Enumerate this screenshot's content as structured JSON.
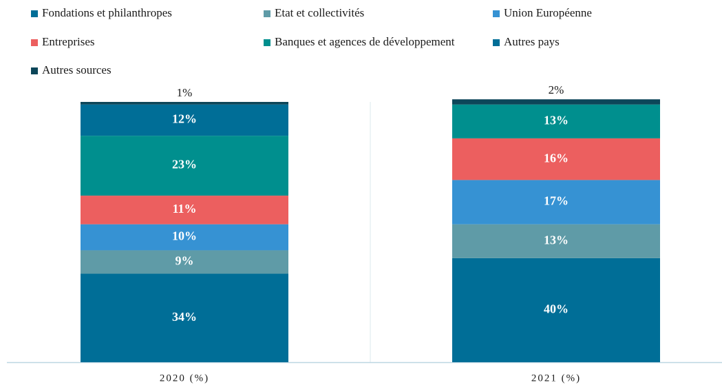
{
  "chart_data": {
    "type": "stacked_bar",
    "categories": [
      "2020 (%)",
      "2021 (%)"
    ],
    "ylim": [
      0,
      100
    ],
    "series": [
      {
        "name": "Fondations et philanthropes",
        "color": "#006e97",
        "values": [
          34,
          40
        ],
        "value_labels": [
          "34%",
          "40%"
        ]
      },
      {
        "name": "Etat et collectivités",
        "color": "#5f9ba7",
        "values": [
          9,
          13
        ],
        "value_labels": [
          "9%",
          "13%"
        ]
      },
      {
        "name": "Union Européenne",
        "color": "#3692d3",
        "values": [
          10,
          17
        ],
        "value_labels": [
          "10%",
          "17%"
        ]
      },
      {
        "name": "Entreprises",
        "color": "#ec5f5f",
        "values": [
          11,
          16
        ],
        "value_labels": [
          "11%",
          "16%"
        ]
      },
      {
        "name": "Banques et agences de développement",
        "color": "#008f8e",
        "values": [
          23,
          13
        ],
        "value_labels": [
          "23%",
          "13%"
        ]
      },
      {
        "name": "Autres pays",
        "color": "#006e97",
        "values": [
          12,
          null
        ],
        "value_labels": [
          "12%",
          null
        ]
      },
      {
        "name": "Autres sources",
        "color": "#0c4659",
        "values": [
          1,
          2
        ],
        "value_labels": [
          "1%",
          "2%"
        ]
      }
    ]
  }
}
